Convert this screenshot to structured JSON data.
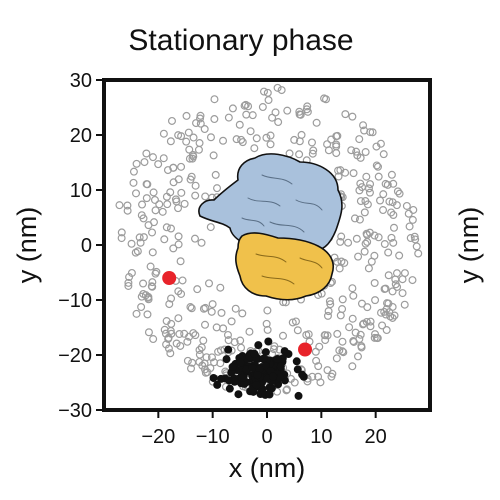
{
  "chart_data": {
    "type": "scatter",
    "title": "Stationary phase",
    "xlabel": "x (nm)",
    "ylabel": "y (nm)",
    "right_ylabel": "y (nm)",
    "xlim": [
      -30,
      30
    ],
    "ylim": [
      -30,
      30
    ],
    "xticks": [
      -20,
      -10,
      0,
      10,
      20
    ],
    "yticks": [
      -30,
      -20,
      -10,
      0,
      10,
      20,
      30
    ],
    "grid": false,
    "legend": "none",
    "colors": {
      "open_points": "#9c9c9c",
      "black_points": "#111111",
      "red_points": "#e8232a",
      "blue_subunit": "#a9c1dc",
      "yellow_subunit": "#f0c14b"
    },
    "series": [
      {
        "marker": "open-circle",
        "count": 500,
        "distribution": "spread across the disc, avoiding the ribosome center",
        "radius_range": [
          10,
          28
        ]
      },
      {
        "marker": "filled-black-circle",
        "count": 150,
        "center": [
          -2,
          -23
        ],
        "spread": [
          6,
          3.5
        ]
      },
      {
        "marker": "filled-red-circle",
        "points": [
          [
            -18,
            -6
          ],
          [
            7,
            -19
          ]
        ]
      }
    ]
  }
}
